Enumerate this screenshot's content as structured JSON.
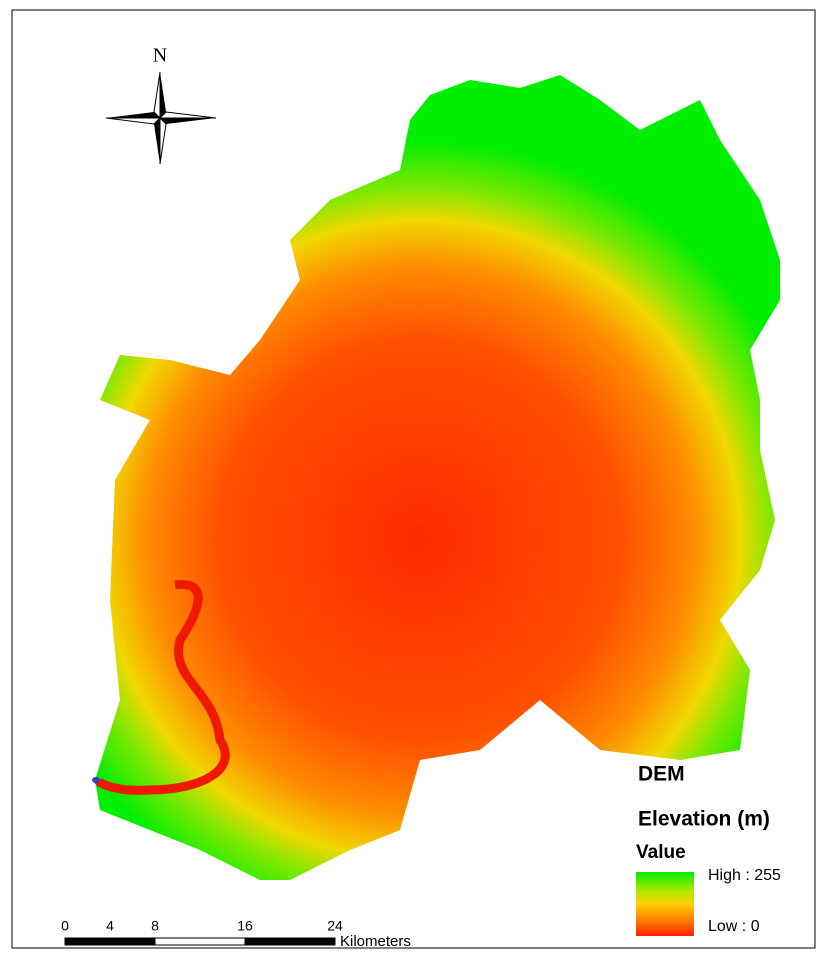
{
  "map": {
    "north_label": "N",
    "legend": {
      "title": "DEM",
      "subtitle": "Elevation (m)",
      "field": "Value",
      "high": "High : 255",
      "low": "Low : 0"
    },
    "scale_bar": {
      "ticks": [
        0,
        4,
        8,
        16,
        24
      ],
      "unit": "Kilometers"
    }
  }
}
